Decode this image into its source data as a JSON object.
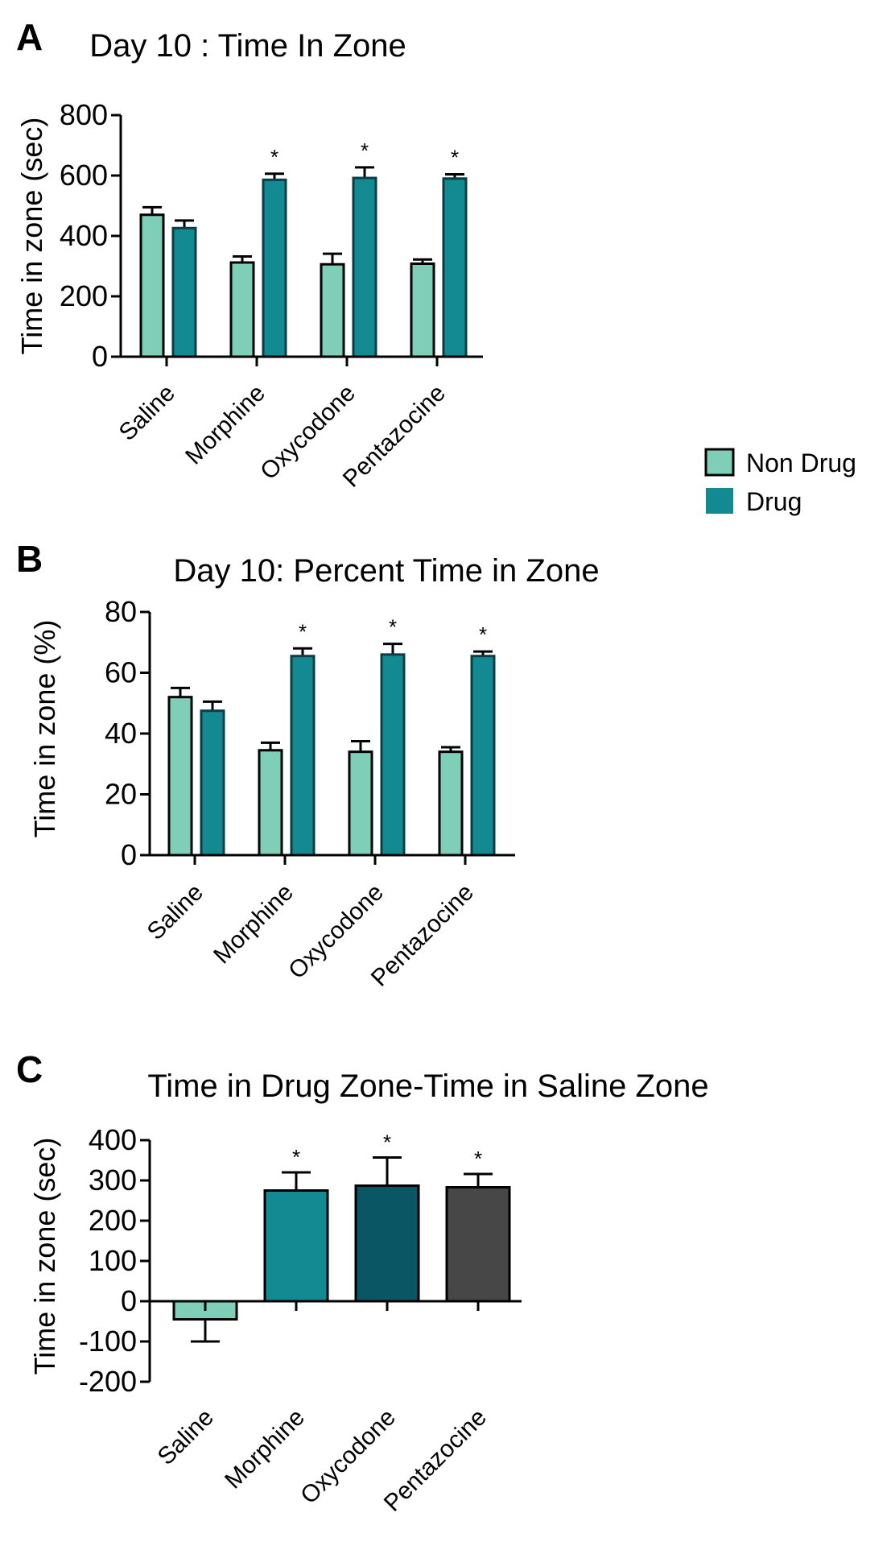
{
  "legend": {
    "items": [
      {
        "label": "Non Drug",
        "color": "#7fcfb8"
      },
      {
        "label": "Drug",
        "color": "#138a92"
      }
    ]
  },
  "chart_data": [
    {
      "panel": "A",
      "type": "bar",
      "title": "Day 10 : Time In Zone",
      "ylabel": "Time  in zone (sec)",
      "xlabel": "",
      "ylim": [
        0,
        800
      ],
      "yticks": [
        0,
        200,
        400,
        600,
        800
      ],
      "categories": [
        "Saline",
        "Morphine",
        "Oxycodone",
        "Pentazocine"
      ],
      "series": [
        {
          "name": "Non Drug",
          "color": "#7fcfb8",
          "values": [
            470,
            312,
            306,
            308
          ],
          "errors": [
            25,
            20,
            35,
            14
          ]
        },
        {
          "name": "Drug",
          "color": "#138a92",
          "values": [
            426,
            586,
            592,
            590
          ],
          "errors": [
            25,
            20,
            35,
            14
          ]
        }
      ],
      "annotations": [
        {
          "category": "Morphine",
          "series": "Drug",
          "text": "*"
        },
        {
          "category": "Oxycodone",
          "series": "Drug",
          "text": "*"
        },
        {
          "category": "Pentazocine",
          "series": "Drug",
          "text": "*"
        }
      ]
    },
    {
      "panel": "B",
      "type": "bar",
      "title": "Day 10:  Percent Time in Zone",
      "ylabel": "Time  in zone (%)",
      "xlabel": "",
      "ylim": [
        0,
        80
      ],
      "yticks": [
        0,
        20,
        40,
        60,
        80
      ],
      "categories": [
        "Saline",
        "Morphine",
        "Oxycodone",
        "Pentazocine"
      ],
      "series": [
        {
          "name": "Non Drug",
          "color": "#7fcfb8",
          "values": [
            52,
            34.5,
            34,
            34
          ],
          "errors": [
            3,
            2.5,
            3.5,
            1.5
          ]
        },
        {
          "name": "Drug",
          "color": "#138a92",
          "values": [
            47.5,
            65.5,
            66,
            65.5
          ],
          "errors": [
            3,
            2.5,
            3.5,
            1.5
          ]
        }
      ],
      "annotations": [
        {
          "category": "Morphine",
          "series": "Drug",
          "text": "*"
        },
        {
          "category": "Oxycodone",
          "series": "Drug",
          "text": "*"
        },
        {
          "category": "Pentazocine",
          "series": "Drug",
          "text": "*"
        }
      ]
    },
    {
      "panel": "C",
      "type": "bar",
      "title": "Time in Drug Zone-Time in Saline Zone",
      "ylabel": "Time  in zone (sec)",
      "xlabel": "",
      "ylim": [
        -200,
        400
      ],
      "yticks": [
        -200,
        -100,
        0,
        100,
        200,
        300,
        400
      ],
      "categories": [
        "Saline",
        "Morphine",
        "Oxycodone",
        "Pentazocine"
      ],
      "values": [
        -45,
        275,
        287,
        283
      ],
      "errors": [
        55,
        45,
        70,
        33
      ],
      "colors": [
        "#7fcfb8",
        "#138a92",
        "#0b5664",
        "#474747"
      ],
      "annotations": [
        {
          "category": "Morphine",
          "text": "*"
        },
        {
          "category": "Oxycodone",
          "text": "*"
        },
        {
          "category": "Pentazocine",
          "text": "*"
        }
      ]
    }
  ]
}
